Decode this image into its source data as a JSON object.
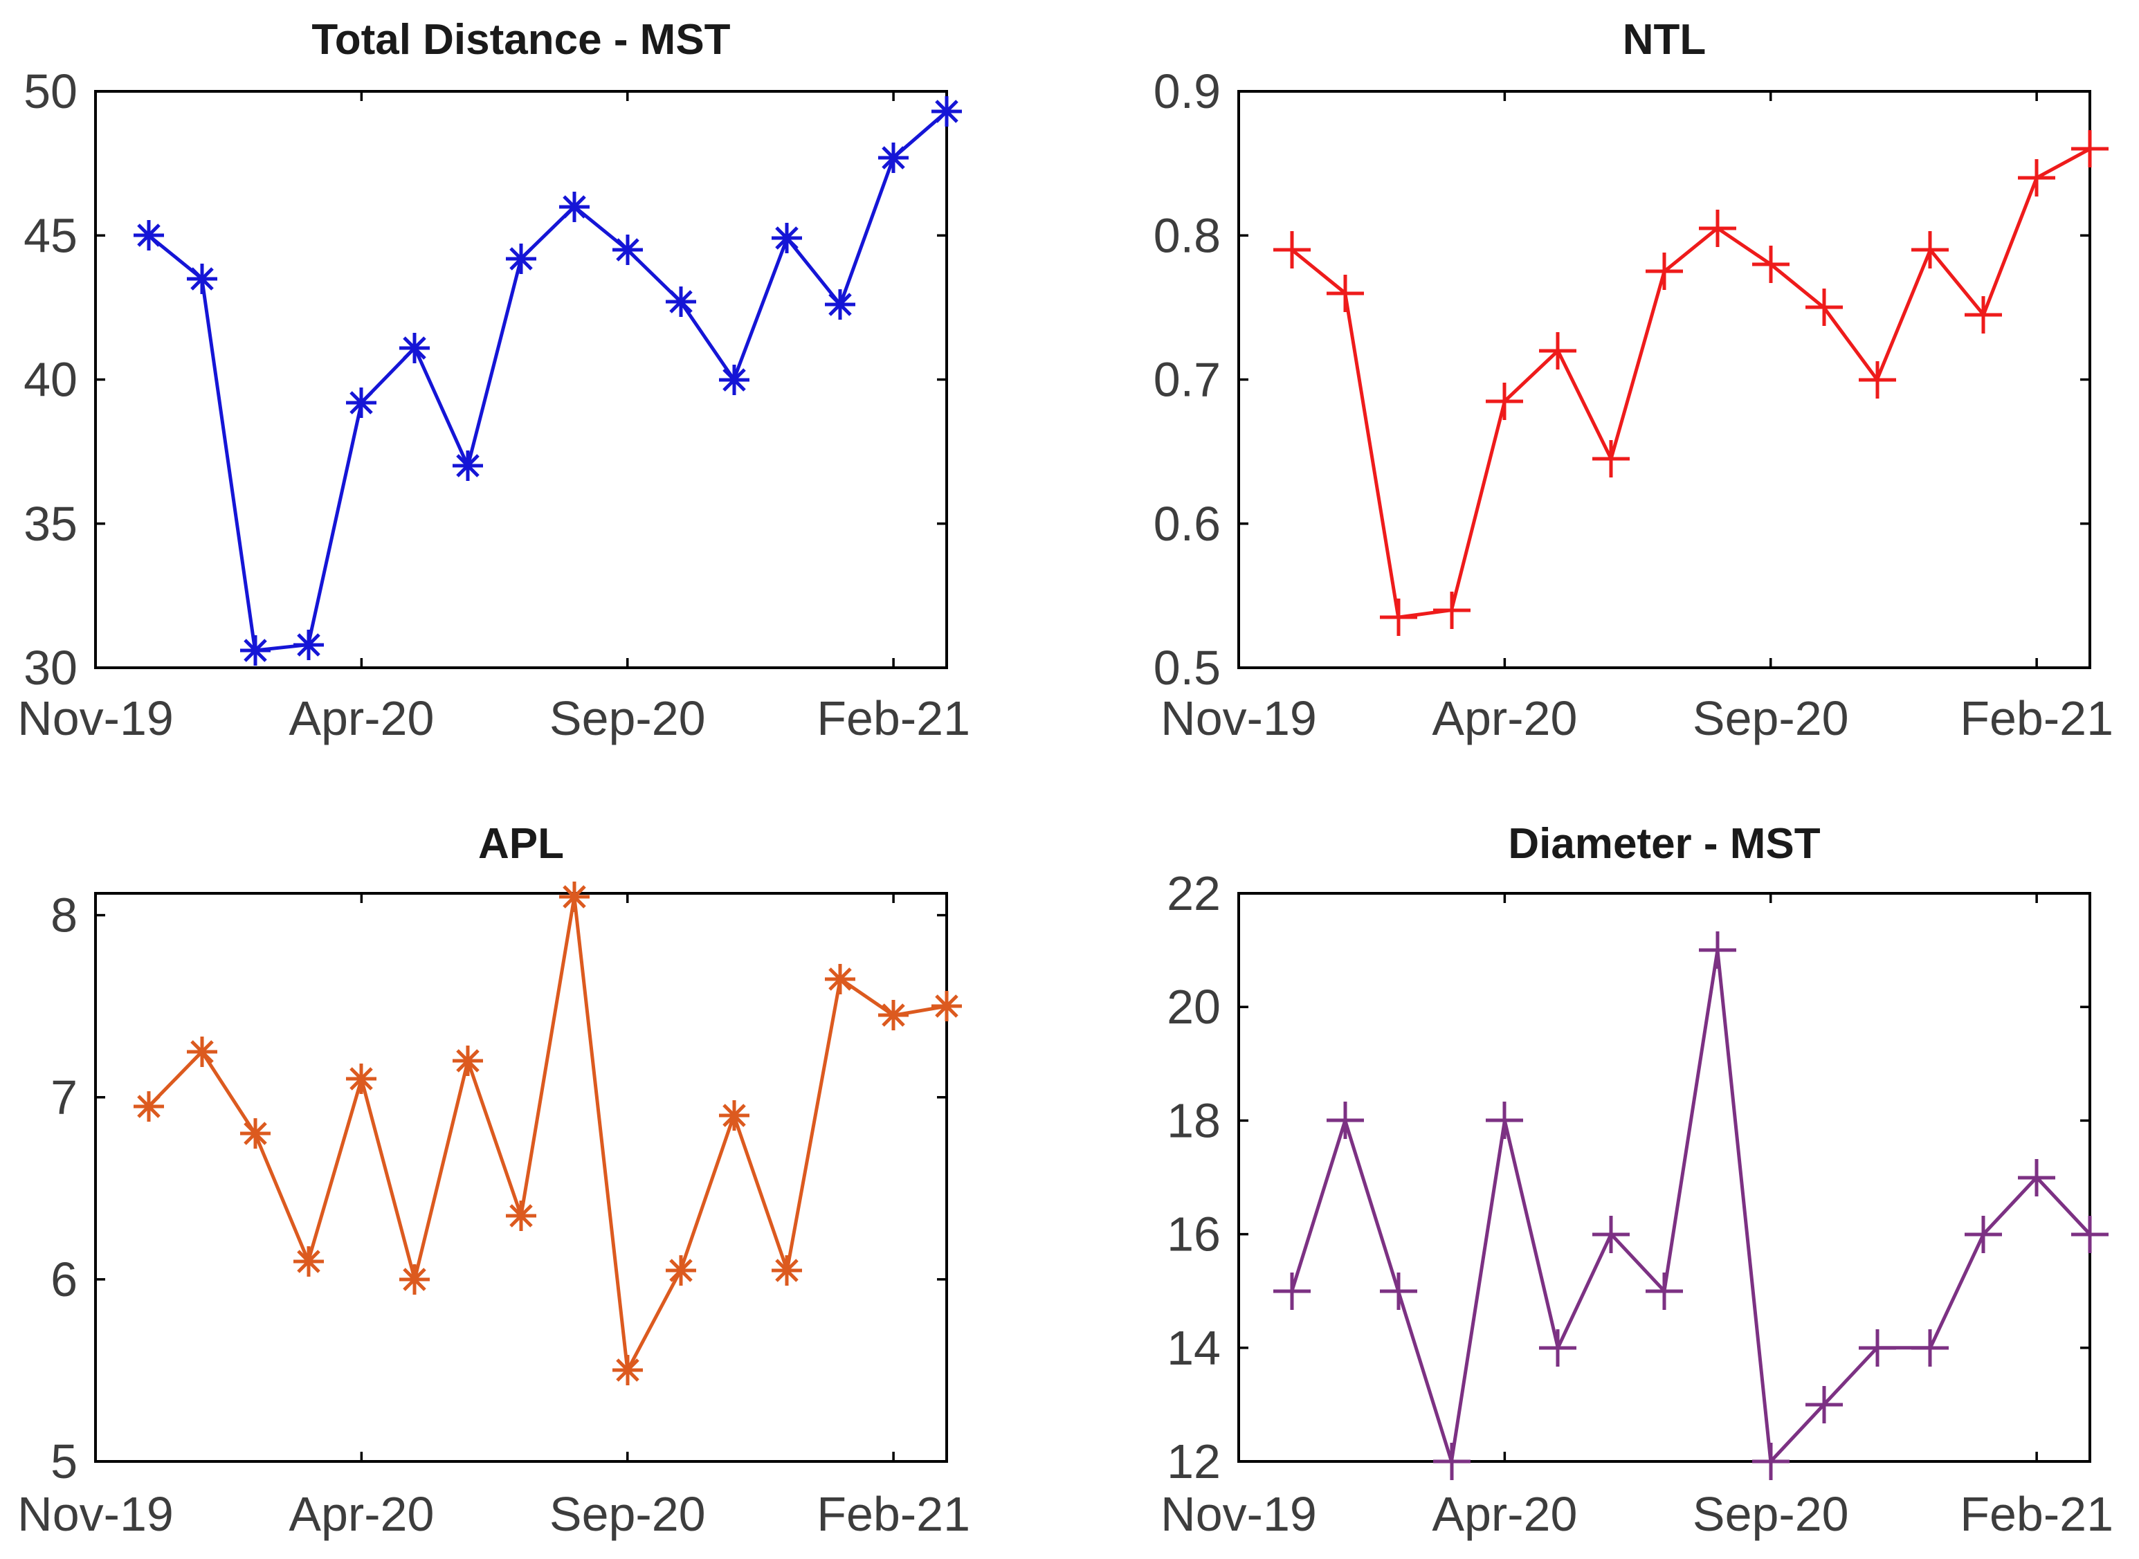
{
  "page": {
    "background_color": "#ffffff",
    "axis_color": "#000000",
    "tick_label_color": "#3d3d3d",
    "title_color": "#1a1a1a"
  },
  "chart_data": [
    {
      "id": "total-distance-mst",
      "type": "line",
      "title": "Total Distance - MST",
      "color": "#1515d6",
      "marker": "asterisk",
      "x_unit": "months since Nov-19",
      "x": [
        1,
        2,
        3,
        4,
        5,
        6,
        7,
        8,
        9,
        10,
        11,
        12,
        13,
        14,
        15,
        16
      ],
      "values": [
        45,
        43.5,
        30.6,
        30.8,
        39.2,
        41.1,
        37,
        44.2,
        46,
        44.5,
        42.7,
        40,
        44.9,
        42.6,
        47.7,
        49.3
      ],
      "xlim": [
        0,
        16
      ],
      "ylim": [
        30,
        50
      ],
      "x_tick_positions": [
        0,
        5,
        10,
        15
      ],
      "x_tick_labels": [
        "Nov-19",
        "Apr-20",
        "Sep-20",
        "Feb-21"
      ],
      "y_tick_labels": [
        "30",
        "35",
        "40",
        "45",
        "50"
      ],
      "grid": false,
      "legend": null
    },
    {
      "id": "ntl",
      "type": "line",
      "title": "NTL",
      "color": "#ee1b1b",
      "marker": "plus",
      "x_unit": "months since Nov-19",
      "x": [
        1,
        2,
        3,
        4,
        5,
        6,
        7,
        8,
        9,
        10,
        11,
        12,
        13,
        14,
        15,
        16
      ],
      "values": [
        0.79,
        0.76,
        0.535,
        0.54,
        0.685,
        0.72,
        0.645,
        0.775,
        0.805,
        0.78,
        0.75,
        0.7,
        0.79,
        0.745,
        0.84,
        0.86
      ],
      "xlim": [
        0,
        16
      ],
      "ylim": [
        0.5,
        0.9
      ],
      "x_tick_positions": [
        0,
        5,
        10,
        15
      ],
      "x_tick_labels": [
        "Nov-19",
        "Apr-20",
        "Sep-20",
        "Feb-21"
      ],
      "y_tick_labels": [
        "0.5",
        "0.6",
        "0.7",
        "0.8",
        "0.9"
      ],
      "grid": false,
      "legend": null
    },
    {
      "id": "apl",
      "type": "line",
      "title": "APL",
      "color": "#dc5a1f",
      "marker": "asterisk",
      "x_unit": "months since Nov-19",
      "x": [
        1,
        2,
        3,
        4,
        5,
        6,
        7,
        8,
        9,
        10,
        11,
        12,
        13,
        14,
        15,
        16
      ],
      "values": [
        6.95,
        7.25,
        6.8,
        6.1,
        7.1,
        6,
        7.2,
        6.35,
        8.1,
        5.5,
        6.05,
        6.9,
        6.05,
        7.65,
        7.45,
        7.5
      ],
      "xlim": [
        0,
        16
      ],
      "ylim": [
        5,
        8.12
      ],
      "x_tick_positions": [
        0,
        5,
        10,
        15
      ],
      "x_tick_labels": [
        "Nov-19",
        "Apr-20",
        "Sep-20",
        "Feb-21"
      ],
      "y_tick_labels": [
        "5",
        "6",
        "7",
        "8"
      ],
      "grid": false,
      "legend": null
    },
    {
      "id": "diameter-mst",
      "type": "line",
      "title": "Diameter - MST",
      "color": "#7c3183",
      "marker": "plus",
      "x_unit": "months since Nov-19",
      "x": [
        1,
        2,
        3,
        4,
        5,
        6,
        7,
        8,
        9,
        10,
        11,
        12,
        13,
        14,
        15,
        16
      ],
      "values": [
        15,
        18,
        15,
        12,
        18,
        14,
        16,
        15,
        21,
        12,
        13,
        14,
        14,
        16,
        17,
        16
      ],
      "xlim": [
        0,
        16
      ],
      "ylim": [
        12,
        22
      ],
      "x_tick_positions": [
        0,
        5,
        10,
        15
      ],
      "x_tick_labels": [
        "Nov-19",
        "Apr-20",
        "Sep-20",
        "Feb-21"
      ],
      "y_tick_labels": [
        "12",
        "14",
        "16",
        "18",
        "20",
        "22"
      ],
      "grid": false,
      "legend": null
    }
  ]
}
